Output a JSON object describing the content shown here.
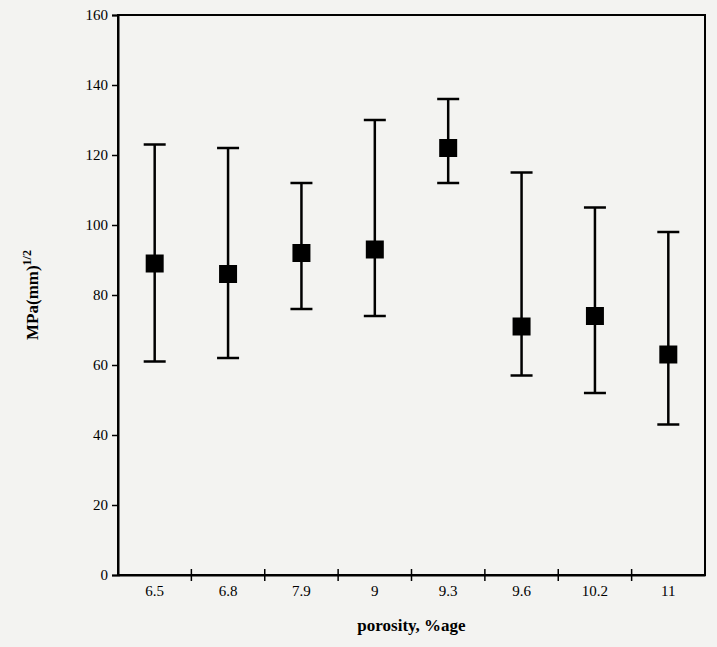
{
  "chart_data": {
    "type": "scatter",
    "x_label": "porosity, %age",
    "y_label": "MPa(mm)1/2",
    "categories": [
      "6.5",
      "6.8",
      "7.9",
      "9",
      "9.3",
      "9.6",
      "10.2",
      "11"
    ],
    "values": [
      89,
      86,
      92,
      93,
      122,
      71,
      74,
      63
    ],
    "error_low": [
      61,
      62,
      76,
      74,
      112,
      57,
      52,
      43
    ],
    "error_high": [
      123,
      122,
      112,
      130,
      136,
      115,
      105,
      98
    ],
    "color": "#000000",
    "marker": "square",
    "ylim": [
      0,
      160
    ],
    "yticks": [
      0,
      20,
      40,
      60,
      80,
      100,
      120,
      140,
      160
    ],
    "grid": false
  }
}
